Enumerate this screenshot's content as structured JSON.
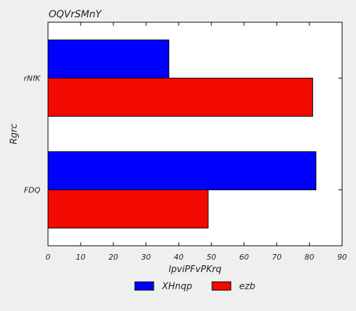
{
  "chart_data": {
    "type": "bar",
    "orientation": "horizontal",
    "title": "OQVrSMnY",
    "xlabel": "lpviPFvPKrq",
    "ylabel": "Rgrc",
    "categories": [
      "FDQ",
      "rNfK"
    ],
    "series": [
      {
        "name": "XHnqp",
        "values": [
          82,
          37
        ],
        "color": "#0000ff"
      },
      {
        "name": "ezb",
        "values": [
          49,
          81
        ],
        "color": "#f20a00"
      }
    ],
    "xlim": [
      0,
      90
    ],
    "xticks": [
      0,
      10,
      20,
      30,
      40,
      50,
      60,
      70,
      80,
      90
    ],
    "grid": false,
    "legend_position": "bottom-center"
  }
}
